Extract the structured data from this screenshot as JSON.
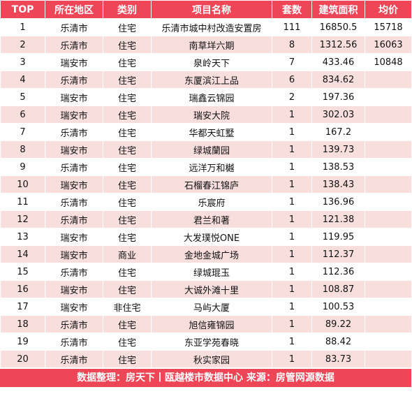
{
  "table": {
    "headers": [
      "TOP",
      "所在地区",
      "类别",
      "项目名称",
      "套数",
      "建筑面积",
      "均价"
    ],
    "rows": [
      [
        "1",
        "乐清市",
        "住宅",
        "乐清市城中村改造安置房",
        "111",
        "16850.5",
        "15718"
      ],
      [
        "2",
        "乐清市",
        "住宅",
        "南草垟六期",
        "8",
        "1312.56",
        "16063"
      ],
      [
        "3",
        "瑞安市",
        "住宅",
        "泉岭天下",
        "7",
        "433.46",
        "10848"
      ],
      [
        "4",
        "乐清市",
        "住宅",
        "东厦滨江上品",
        "6",
        "834.62",
        ""
      ],
      [
        "5",
        "瑞安市",
        "住宅",
        "瑞鑫云锦园",
        "2",
        "197.36",
        ""
      ],
      [
        "6",
        "瑞安市",
        "住宅",
        "瑞安大院",
        "1",
        "302.03",
        ""
      ],
      [
        "7",
        "乐清市",
        "住宅",
        "华都天虹墅",
        "1",
        "167.2",
        ""
      ],
      [
        "8",
        "瑞安市",
        "住宅",
        "绿城蘭园",
        "1",
        "139.73",
        ""
      ],
      [
        "9",
        "乐清市",
        "住宅",
        "远洋万和樾",
        "1",
        "138.53",
        ""
      ],
      [
        "10",
        "瑞安市",
        "住宅",
        "石榴春江锦庐",
        "1",
        "138.43",
        ""
      ],
      [
        "11",
        "乐清市",
        "住宅",
        "乐宸府",
        "1",
        "136.96",
        ""
      ],
      [
        "12",
        "乐清市",
        "住宅",
        "君兰和著",
        "1",
        "121.38",
        ""
      ],
      [
        "13",
        "瑞安市",
        "住宅",
        "大发璞悦ONE",
        "1",
        "119.95",
        ""
      ],
      [
        "14",
        "瑞安市",
        "商业",
        "金地金城广场",
        "1",
        "112.37",
        ""
      ],
      [
        "15",
        "乐清市",
        "住宅",
        "绿城琨玉",
        "1",
        "112.36",
        ""
      ],
      [
        "16",
        "瑞安市",
        "住宅",
        "大诚外滩十里",
        "1",
        "108.87",
        ""
      ],
      [
        "17",
        "瑞安市",
        "非住宅",
        "马屿大厦",
        "1",
        "100.53",
        ""
      ],
      [
        "18",
        "乐清市",
        "住宅",
        "旭信雍锦园",
        "1",
        "89.22",
        ""
      ],
      [
        "19",
        "乐清市",
        "住宅",
        "东亚学苑春晓",
        "1",
        "88.42",
        ""
      ],
      [
        "20",
        "乐清市",
        "住宅",
        "秋实家园",
        "1",
        "83.73",
        ""
      ]
    ]
  },
  "footer": {
    "text": "数据整理：房天下丨瓯越楼市数据中心   来源：房管网源数据"
  },
  "colors": {
    "header_bg": "#ee4656",
    "stripe_bg": "#f9dede",
    "text": "#111111"
  }
}
